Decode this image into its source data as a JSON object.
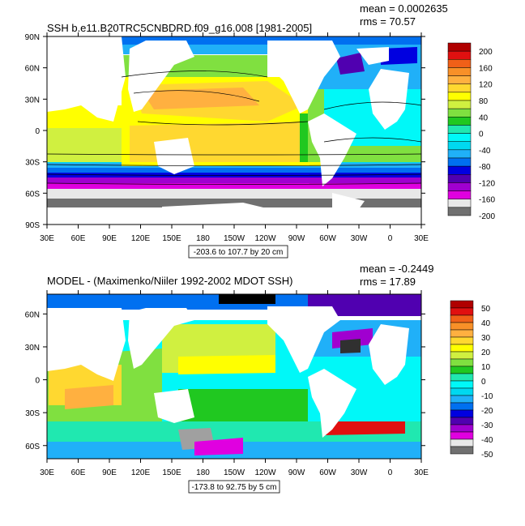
{
  "chart_data": [
    {
      "type": "heatmap",
      "title": "SSH b.e11.B20TRC5CNBDRD.f09_g16.008 [1981-2005]",
      "stats": {
        "mean": "mean = 0.0002635",
        "rms": "rms = 70.57"
      },
      "x_ticks": [
        "30E",
        "60E",
        "90E",
        "120E",
        "150E",
        "180",
        "150W",
        "120W",
        "90W",
        "60W",
        "30W",
        "0",
        "30E"
      ],
      "y_ticks": [
        "90N",
        "60N",
        "30N",
        "0",
        "30S",
        "60S",
        "90S"
      ],
      "xlim": [
        30,
        390
      ],
      "ylim": [
        -90,
        90
      ],
      "contour_info": "-203.6 to 107.7 by 20 cm",
      "colorbar": {
        "labels": [
          "200",
          "160",
          "120",
          "80",
          "40",
          "0",
          "-40",
          "-80",
          "-120",
          "-160",
          "-200"
        ],
        "colors": [
          "#b00000",
          "#e01010",
          "#f06018",
          "#f89028",
          "#ffb040",
          "#ffd830",
          "#ffff00",
          "#d0f040",
          "#80e040",
          "#20c820",
          "#20e8b0",
          "#00f8f8",
          "#00d8f0",
          "#20b0f8",
          "#0070f0",
          "#0000e0",
          "#5000b0",
          "#a000d0",
          "#e000e0",
          "#e8e8e8",
          "#707070"
        ]
      },
      "colorbar_ticks": [
        "200",
        "160",
        "120",
        "80",
        "40",
        "0",
        "-40",
        "-80",
        "-120",
        "-160",
        "-200"
      ]
    },
    {
      "type": "heatmap",
      "title": "MODEL - (Maximenko/Niiler 1992-2002 MDOT SSH)",
      "stats": {
        "mean": "mean = -0.2449",
        "rms": "rms = 17.89"
      },
      "x_ticks": [
        "30E",
        "60E",
        "90E",
        "120E",
        "150E",
        "180",
        "150W",
        "120W",
        "90W",
        "60W",
        "30W",
        "0",
        "30E"
      ],
      "y_ticks": [
        "60N",
        "30N",
        "0",
        "30S",
        "60S"
      ],
      "xlim": [
        30,
        390
      ],
      "ylim": [
        -72,
        78
      ],
      "contour_info": "-173.8 to 92.75 by 5 cm",
      "colorbar": {
        "labels": [
          "50",
          "40",
          "30",
          "20",
          "10",
          "0",
          "-10",
          "-20",
          "-30",
          "-40",
          "-50"
        ],
        "colors": [
          "#b00000",
          "#e01010",
          "#f06018",
          "#f89028",
          "#ffb040",
          "#ffd830",
          "#ffff00",
          "#d0f040",
          "#80e040",
          "#20c820",
          "#20e8b0",
          "#00f8f8",
          "#00d8f0",
          "#20b0f8",
          "#0070f0",
          "#0000e0",
          "#5000b0",
          "#a000d0",
          "#e000e0",
          "#e8e8e8",
          "#707070"
        ]
      },
      "colorbar_ticks": [
        "50",
        "40",
        "30",
        "20",
        "10",
        "0",
        "-10",
        "-20",
        "-30",
        "-40",
        "-50"
      ]
    }
  ]
}
